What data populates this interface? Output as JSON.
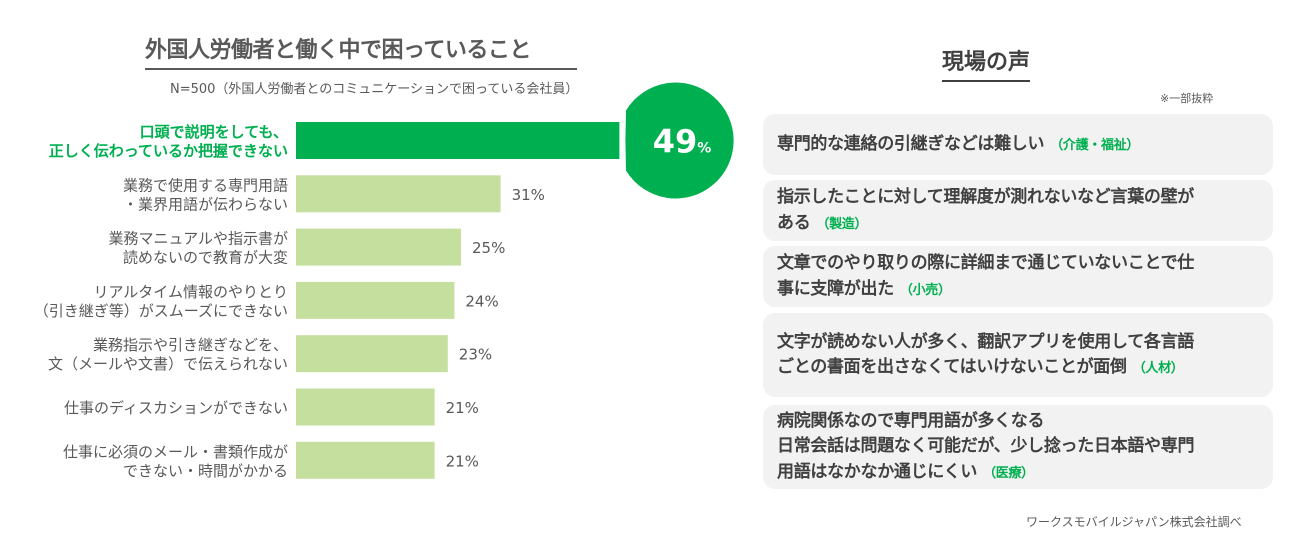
{
  "left": {
    "title": "外国人労働者と働く中で困っていること",
    "subtitle": "N=500（外国人労働者とのコミュニケーションで困っている会社員）"
  },
  "colors": {
    "highlight": "#00b050",
    "bar": "#c5df9f",
    "text": "#595959"
  },
  "chart_data": {
    "type": "bar",
    "orientation": "horizontal",
    "categories": [
      [
        "口頭で説明をしても、",
        "正しく伝わっているか把握できない"
      ],
      [
        "業務で使用する専門用語",
        "・業界用語が伝わらない"
      ],
      [
        "業務マニュアルや指示書が",
        "読めないので教育が大変"
      ],
      [
        "リアルタイム情報のやりとり",
        "（引き継ぎ等）がスムーズにできない"
      ],
      [
        "業務指示や引き継ぎなどを、",
        "文（メールや文書）で伝えられない"
      ],
      [
        "仕事のディスカションができない"
      ],
      [
        "仕事に必須のメール・書類作成が",
        "できない・時間がかかる"
      ]
    ],
    "values": [
      49,
      31,
      25,
      24,
      23,
      21,
      21
    ],
    "value_labels": [
      "49",
      "31%",
      "25%",
      "24%",
      "23%",
      "21%",
      "21%"
    ],
    "highlight_unit": "%",
    "highlight_index": 0
  },
  "right": {
    "title": "現場の声",
    "note": "※一部抜粋",
    "voices": [
      {
        "text": "専門的な連絡の引継ぎなどは難しい",
        "tag": "（介護・福祉）"
      },
      {
        "text": "指示したことに対して理解度が測れないなど言葉の壁が\nある",
        "tag": "（製造）"
      },
      {
        "text": "文章でのやり取りの際に詳細まで通じていないことで仕\n事に支障が出た",
        "tag": "（小売）"
      },
      {
        "text": "文字が読めない人が多く、翻訳アプリを使用して各言語\nごとの書面を出さなくてはいけないことが面倒",
        "tag": "（人材）"
      },
      {
        "text": "病院関係なので専門用語が多くなる\n日常会話は問題なく可能だが、少し捻った日本語や専門\n用語はなかなか通じにくい",
        "tag": "（医療）"
      }
    ]
  },
  "source": "ワークスモバイルジャパン株式会社調べ"
}
